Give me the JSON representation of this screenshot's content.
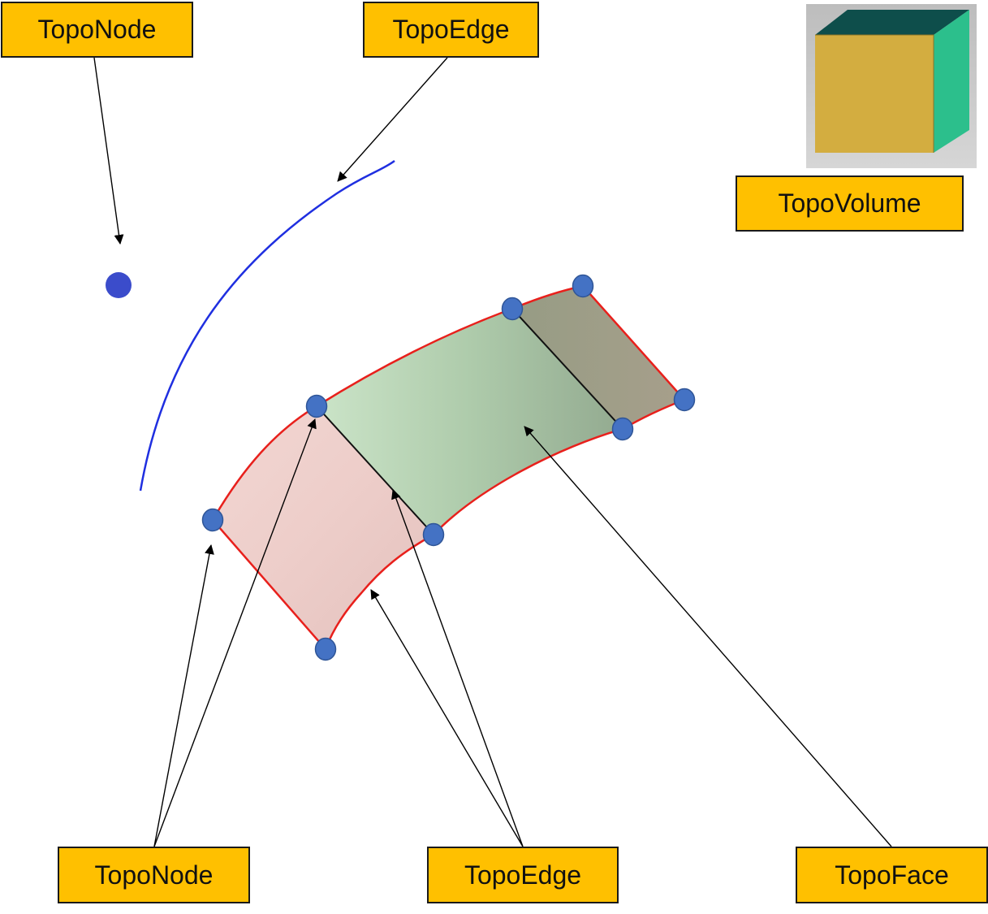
{
  "labels": {
    "node_top": "TopoNode",
    "edge_top": "TopoEdge",
    "volume": "TopoVolume",
    "node_bottom": "TopoNode",
    "edge_bottom": "TopoEdge",
    "face_bottom": "TopoFace"
  },
  "colors": {
    "label_fill": "#FFC000",
    "label_border": "#1a1a1a",
    "face_boundary": "#E8201C",
    "face_interior_edge": "#111111",
    "node_fill": "#4472C4",
    "node_standalone": "#3B4CCB",
    "edge_curve": "#1F2FE0",
    "face_left": "#EAC9C6",
    "face_middle": "#B5CFB2",
    "face_right": "#A39E88",
    "cube_front": "#D3AD40",
    "cube_side": "#2CBF8C",
    "cube_top": "#0E4E4B",
    "cube_background": "#C9C9C9"
  }
}
